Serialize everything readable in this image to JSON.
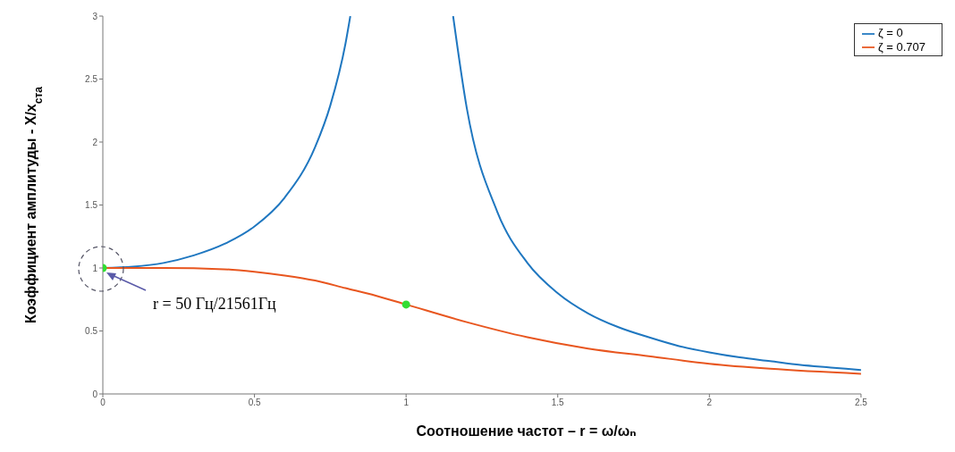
{
  "chart_data": {
    "type": "line",
    "xlabel": "Соотношение частот – r = ω/ωₙ",
    "ylabel": "Коэффициент амплитуды - X/x$_{ста}$",
    "xlim": [
      0,
      2.5
    ],
    "xticks": [
      0,
      0.5,
      1,
      1.5,
      2,
      2.5
    ],
    "ylim": [
      0,
      3
    ],
    "yticks": [
      0,
      0.5,
      1,
      1.5,
      2,
      2.5,
      3
    ],
    "grid": false,
    "legend": "top right",
    "marker": "none",
    "line_style": "solid",
    "series": [
      {
        "name": "ζ = 0",
        "color": "#1f77c0",
        "x": [
          0,
          0.1,
          0.2,
          0.3,
          0.4,
          0.5,
          0.6,
          0.7,
          0.75,
          0.8,
          0.816,
          0.9,
          1.155,
          1.2,
          1.3,
          1.4,
          1.5,
          1.6,
          1.7,
          1.8,
          1.9,
          2.0,
          2.1,
          2.2,
          2.3,
          2.4,
          2.5
        ],
        "values": [
          1,
          1.01,
          1.04,
          1.1,
          1.19,
          1.33,
          1.56,
          1.96,
          2.29,
          2.78,
          3.0,
          null,
          3.0,
          2.27,
          1.45,
          1.04,
          0.8,
          0.64,
          0.53,
          0.45,
          0.38,
          0.33,
          0.29,
          0.26,
          0.23,
          0.21,
          0.19
        ]
      },
      {
        "name": "ζ = 0.707",
        "color": "#e8561f",
        "x": [
          0,
          0.2,
          0.4,
          0.5,
          0.6,
          0.7,
          0.8,
          0.9,
          1.0,
          1.2,
          1.4,
          1.6,
          1.8,
          2.0,
          2.2,
          2.5
        ],
        "values": [
          1,
          1.0,
          0.99,
          0.97,
          0.94,
          0.9,
          0.84,
          0.78,
          0.71,
          0.57,
          0.45,
          0.36,
          0.3,
          0.24,
          0.2,
          0.16
        ]
      },
      {
        "type": "scatter",
        "color": "#33dd33",
        "marker": "circle",
        "x": [
          0,
          1.0
        ],
        "values": [
          1,
          0.71
        ]
      }
    ],
    "annotations": [
      "r = 50 Гц/21561Гц"
    ]
  }
}
